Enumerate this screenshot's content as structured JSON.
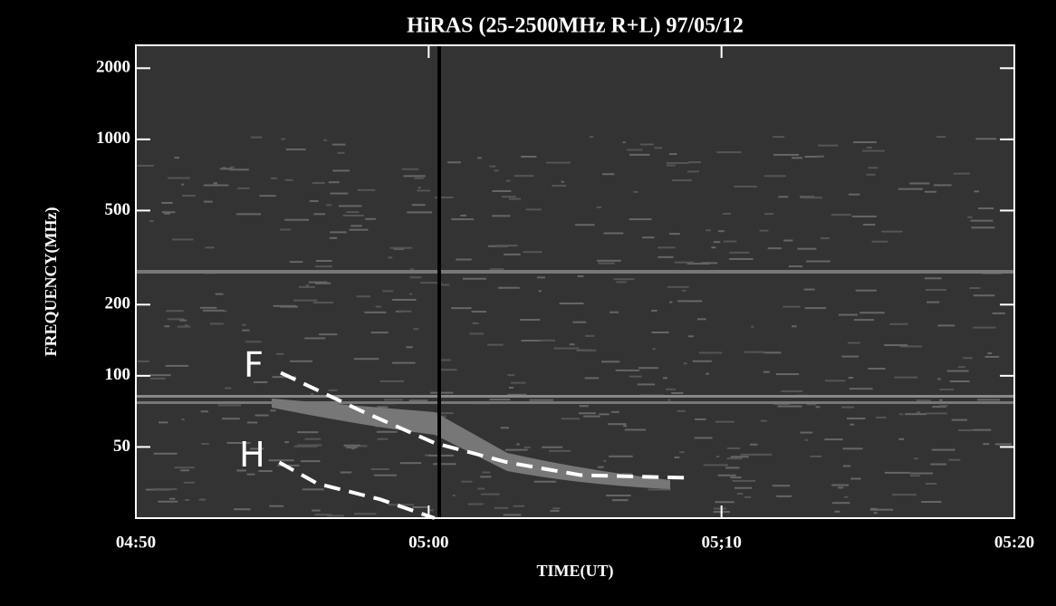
{
  "chart_data": {
    "type": "line",
    "title": "HiRAS (25-2500MHz R+L)   97/05/12",
    "xlabel": "TIME(UT)",
    "ylabel": "FREQUENCY(MHz)",
    "log_y": true,
    "xlim": [
      0,
      30
    ],
    "xticks": [
      {
        "value": 0,
        "label": "04:50"
      },
      {
        "value": 10,
        "label": "05:00"
      },
      {
        "value": 20,
        "label": "05;10"
      },
      {
        "value": 30,
        "label": "05:20"
      }
    ],
    "ylim": [
      25,
      2500
    ],
    "yticks": [
      50,
      100,
      200,
      500,
      1000,
      2000
    ],
    "series": [
      {
        "name": "F",
        "color": "#ffffff",
        "x": [
          4.95,
          7.7,
          10.2,
          12.7,
          15.2,
          18.9
        ],
        "values": [
          103,
          71,
          52,
          43,
          38,
          37
        ]
      },
      {
        "name": "H",
        "color": "#ffffff",
        "x": [
          4.9,
          6.2,
          8.35,
          10.2
        ],
        "values": [
          43,
          35,
          30,
          25
        ]
      }
    ]
  }
}
